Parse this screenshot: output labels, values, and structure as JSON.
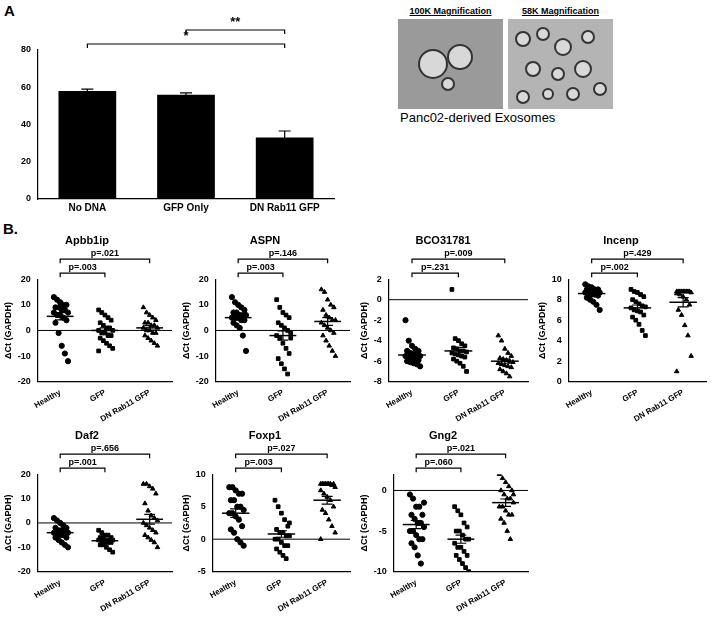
{
  "panel_labels": [
    "A",
    "B."
  ],
  "micrographs": {
    "titles": [
      "100K Magnification",
      "58K Magnification"
    ],
    "caption": "Panc02-derived Exosomes"
  },
  "chart_data": [
    {
      "type": "bar",
      "categories": [
        "No DNA",
        "GFP Only",
        "DN Rab11 GFP"
      ],
      "values": [
        58,
        56,
        33
      ],
      "errors": [
        1,
        1,
        3.5
      ],
      "color": "#000000",
      "ylim": [
        0,
        80
      ],
      "yticks": [
        0,
        20,
        40,
        60,
        80
      ],
      "grid": false,
      "annotations": [
        {
          "from": "No DNA",
          "to": "DN Rab11 GFP",
          "text": "*"
        },
        {
          "from": "GFP Only",
          "to": "DN Rab11 GFP",
          "text": "**"
        }
      ]
    },
    {
      "type": "scatter",
      "title": "Apbb1ip",
      "y_label": "ΔCt (GAPDH)",
      "color": "#000000",
      "ylim": [
        -20,
        20
      ],
      "yticks": [
        -20,
        -10,
        0,
        10,
        20
      ],
      "grid": false,
      "series": [
        {
          "name": "Healthy",
          "marker": "circle",
          "values": [
            13,
            12,
            11,
            10,
            10,
            9,
            9,
            8,
            8,
            7,
            7,
            6,
            6,
            5,
            4,
            3,
            -1,
            -6,
            -9,
            -12
          ],
          "mean": 5.5,
          "error": 1.4
        },
        {
          "name": "GFP",
          "marker": "square",
          "values": [
            8,
            7,
            6,
            5,
            4,
            3,
            2,
            1,
            1,
            0,
            0,
            -1,
            -1,
            -2,
            -2,
            -3,
            -4,
            -5,
            -6,
            -7,
            -8
          ],
          "mean": 0,
          "error": 1
        },
        {
          "name": "DN Rab11 GFP",
          "marker": "triangle",
          "values": [
            9,
            7,
            6,
            5,
            4,
            3,
            3,
            2,
            2,
            1,
            1,
            0,
            0,
            -1,
            -1,
            -2,
            -3,
            -4,
            -5,
            -6
          ],
          "mean": 1,
          "error": 0.9
        }
      ],
      "annotations": [
        {
          "from": "Healthy",
          "to": "GFP",
          "text": "p=.003"
        },
        {
          "from": "Healthy",
          "to": "DN Rab11 GFP",
          "text": "p=.021"
        }
      ]
    },
    {
      "type": "scatter",
      "title": "ASPN",
      "y_label": "ΔCt (GAPDH)",
      "color": "#000000",
      "ylim": [
        -20,
        20
      ],
      "yticks": [
        -20,
        -10,
        0,
        10,
        20
      ],
      "grid": false,
      "series": [
        {
          "name": "Healthy",
          "marker": "circle",
          "values": [
            13,
            11,
            10,
            9,
            8,
            7,
            7,
            6,
            6,
            6,
            5,
            5,
            5,
            4,
            4,
            3,
            2,
            1,
            -2,
            -8
          ],
          "mean": 5,
          "error": 1
        },
        {
          "name": "GFP",
          "marker": "square",
          "values": [
            12,
            9,
            7,
            6,
            5,
            3,
            2,
            1,
            0,
            -1,
            -2,
            -3,
            -5,
            -7,
            -9,
            -11,
            -13,
            -15,
            -17,
            -3
          ],
          "mean": -2,
          "error": 1.8
        },
        {
          "name": "DN Rab11 GFP",
          "marker": "triangle",
          "values": [
            16,
            15,
            12,
            10,
            9,
            8,
            6,
            5,
            4,
            4,
            3,
            2,
            1,
            0,
            -1,
            -2,
            -4,
            -6,
            -8,
            -10
          ],
          "mean": 3.5,
          "error": 1.5
        }
      ],
      "annotations": [
        {
          "from": "Healthy",
          "to": "GFP",
          "text": "p=.003"
        },
        {
          "from": "Healthy",
          "to": "DN Rab11 GFP",
          "text": "p=.146"
        }
      ]
    },
    {
      "type": "scatter",
      "title": "BCO31781",
      "y_label": "ΔCt (GAPDH)",
      "color": "#000000",
      "ylim": [
        -8,
        2
      ],
      "yticks": [
        -8,
        -6,
        -4,
        -2,
        0,
        2
      ],
      "grid": false,
      "series": [
        {
          "name": "Healthy",
          "marker": "circle",
          "values": [
            -2,
            -4,
            -4.5,
            -4.8,
            -5,
            -5,
            -5.2,
            -5.3,
            -5.4,
            -5.5,
            -5.5,
            -5.6,
            -5.7,
            -5.8,
            -5.9,
            -6,
            -6.1,
            -6.2,
            -6.3,
            -6.5
          ],
          "mean": -5.4,
          "error": 0.2
        },
        {
          "name": "GFP",
          "marker": "square",
          "values": [
            1,
            -3.8,
            -4,
            -4.3,
            -4.5,
            -4.7,
            -4.8,
            -5,
            -5,
            -5.1,
            -5.2,
            -5.3,
            -5.4,
            -5.5,
            -5.6,
            -5.8,
            -6,
            -6.2,
            -6.5,
            -7
          ],
          "mean": -5,
          "error": 0.35
        },
        {
          "name": "DN Rab11 GFP",
          "marker": "triangle",
          "values": [
            -3.5,
            -4,
            -4.8,
            -5.2,
            -5.5,
            -5.7,
            -5.8,
            -5.9,
            -6,
            -6.1,
            -6.2,
            -6.3,
            -6.4,
            -6.5,
            -6.6,
            -6.8,
            -7,
            -7.2,
            -7.5
          ],
          "mean": -6,
          "error": 0.2
        }
      ],
      "annotations": [
        {
          "from": "Healthy",
          "to": "GFP",
          "text": "p=.231"
        },
        {
          "from": "Healthy",
          "to": "DN Rab11 GFP",
          "text": "p=.009"
        }
      ]
    },
    {
      "type": "scatter",
      "title": "Incenp",
      "y_label": "ΔCt (GAPDH)",
      "color": "#000000",
      "ylim": [
        0,
        10
      ],
      "yticks": [
        0,
        2,
        4,
        6,
        8,
        10
      ],
      "grid": false,
      "series": [
        {
          "name": "Healthy",
          "marker": "circle",
          "values": [
            9.5,
            9.3,
            9.2,
            9,
            9,
            9,
            8.9,
            8.8,
            8.8,
            8.7,
            8.7,
            8.6,
            8.5,
            8.5,
            8.4,
            8.2,
            8,
            7.8,
            7.5,
            7
          ],
          "mean": 8.6,
          "error": 0.13
        },
        {
          "name": "GFP",
          "marker": "square",
          "values": [
            9,
            8.8,
            8.7,
            8.5,
            8.3,
            8,
            7.8,
            7.6,
            7.4,
            7.3,
            7.2,
            7,
            6.9,
            6.8,
            6.5,
            6.3,
            6,
            5.6,
            5,
            4.5
          ],
          "mean": 7.2,
          "error": 0.28
        },
        {
          "name": "DN Rab11 GFP",
          "marker": "triangle",
          "values": [
            8.8,
            8.8,
            8.8,
            8.8,
            8.8,
            8.8,
            8.8,
            8.8,
            8.8,
            8.7,
            8.6,
            8.5,
            8.3,
            8,
            7.5,
            7,
            6.5,
            5.5,
            4.5,
            2.5,
            1
          ],
          "mean": 7.75,
          "error": 0.45
        }
      ],
      "annotations": [
        {
          "from": "Healthy",
          "to": "GFP",
          "text": "p=.002"
        },
        {
          "from": "Healthy",
          "to": "DN Rab11 GFP",
          "text": "p=.429"
        }
      ]
    },
    {
      "type": "scatter",
      "title": "Daf2",
      "y_label": "ΔCt (GAPDH)",
      "color": "#000000",
      "ylim": [
        -20,
        20
      ],
      "yticks": [
        -20,
        -10,
        0,
        10,
        20
      ],
      "grid": false,
      "series": [
        {
          "name": "Healthy",
          "marker": "circle",
          "values": [
            2,
            1,
            0,
            -1,
            -2,
            -2,
            -3,
            -3,
            -4,
            -4,
            -4,
            -5,
            -5,
            -5,
            -6,
            -6,
            -7,
            -8,
            -9,
            -10
          ],
          "mean": -4,
          "error": 0.7
        },
        {
          "name": "GFP",
          "marker": "square",
          "values": [
            -3,
            -4,
            -5,
            -5,
            -6,
            -6,
            -6,
            -7,
            -7,
            -7,
            -7,
            -8,
            -8,
            -8,
            -8,
            -9,
            -9,
            -10,
            -11,
            -12
          ],
          "mean": -7.3,
          "error": 0.5
        },
        {
          "name": "DN Rab11 GFP",
          "marker": "triangle",
          "values": [
            16,
            16,
            15,
            14,
            12,
            8,
            5,
            3,
            2,
            1,
            0,
            -1,
            -2,
            -3,
            -4,
            -5,
            -6,
            -7,
            -8,
            -10
          ],
          "mean": 1.5,
          "error": 2
        }
      ],
      "annotations": [
        {
          "from": "Healthy",
          "to": "GFP",
          "text": "p=.001"
        },
        {
          "from": "Healthy",
          "to": "DN Rab11 GFP",
          "text": "p=.656"
        }
      ]
    },
    {
      "type": "scatter",
      "title": "Foxp1",
      "y_label": "ΔCt (GAPDH)",
      "color": "#000000",
      "ylim": [
        -5,
        10
      ],
      "yticks": [
        -5,
        0,
        5,
        10
      ],
      "grid": false,
      "series": [
        {
          "name": "Healthy",
          "marker": "circle",
          "values": [
            8,
            8,
            7.5,
            7,
            7,
            6,
            6,
            5,
            5,
            4.5,
            4,
            4,
            3.5,
            3,
            2,
            1.5,
            1,
            0,
            -0.5,
            -1
          ],
          "mean": 4,
          "error": 0.65
        },
        {
          "name": "GFP",
          "marker": "square",
          "values": [
            6,
            5,
            4,
            3,
            2,
            1.5,
            1,
            1,
            0.5,
            0.5,
            0,
            0,
            -0.5,
            -1,
            -1,
            -1.5,
            -2,
            -2.5,
            -3,
            2.5
          ],
          "mean": 0.8,
          "error": 0.5
        },
        {
          "name": "DN Rab11 GFP",
          "marker": "triangle",
          "values": [
            8.5,
            8.5,
            8.5,
            8.5,
            8.5,
            8.5,
            8.5,
            8.5,
            8.3,
            8,
            7.5,
            7,
            6.5,
            6,
            5,
            4.5,
            4,
            3,
            2,
            1,
            0
          ],
          "mean": 6,
          "error": 0.6
        }
      ],
      "annotations": [
        {
          "from": "Healthy",
          "to": "GFP",
          "text": "p=.003"
        },
        {
          "from": "Healthy",
          "to": "DN Rab11 GFP",
          "text": "p=.027"
        }
      ]
    },
    {
      "type": "scatter",
      "title": "Gng2",
      "y_label": "ΔCt (GAPDH)",
      "color": "#000000",
      "ylim": [
        -10,
        2
      ],
      "yticks": [
        -10,
        -5,
        0
      ],
      "grid": false,
      "series": [
        {
          "name": "Healthy",
          "marker": "circle",
          "values": [
            -0.5,
            -1,
            -2,
            -2,
            -3,
            -3,
            -3.5,
            -4,
            -4,
            -4.5,
            -5,
            -5,
            -5.5,
            -6,
            -6,
            -6.5,
            -7,
            -8,
            -9,
            -1.5
          ],
          "mean": -4.2,
          "error": 0.5
        },
        {
          "name": "GFP",
          "marker": "square",
          "values": [
            -2,
            -2.5,
            -3,
            -4,
            -4.5,
            -5,
            -5,
            -5.5,
            -6,
            -6,
            -6.5,
            -7,
            -7,
            -7.5,
            -8,
            -8,
            -8.5,
            -9,
            -9.5,
            -10
          ],
          "mean": -6,
          "error": 0.5
        },
        {
          "name": "DN Rab11 GFP",
          "marker": "triangle",
          "values": [
            2,
            1.5,
            1,
            0.5,
            0,
            0,
            -0.5,
            -1,
            -1,
            -1.5,
            -2,
            -2,
            -2.5,
            -3,
            -3,
            -3.5,
            -4,
            -5,
            -6,
            -0.5
          ],
          "mean": -1.5,
          "error": 0.45
        }
      ],
      "annotations": [
        {
          "from": "Healthy",
          "to": "GFP",
          "text": "p=.060"
        },
        {
          "from": "Healthy",
          "to": "DN Rab11 GFP",
          "text": "p=.021"
        }
      ]
    }
  ]
}
